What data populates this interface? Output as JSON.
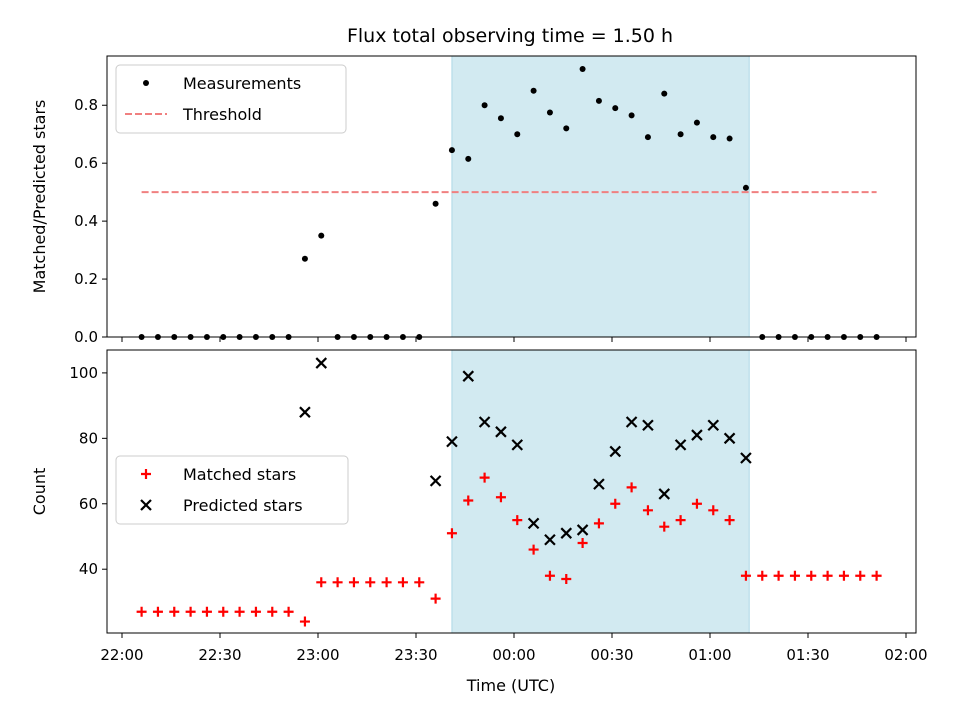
{
  "chart_data": [
    {
      "type": "scatter",
      "title": "Flux total observing time = 1.50 h",
      "xlabel": "",
      "ylabel": "Matched/Predicted stars",
      "ylim": [
        0,
        0.97
      ],
      "yticks": [
        "0.0",
        "0.2",
        "0.4",
        "0.6",
        "0.8"
      ],
      "shaded_region": [
        "23:41",
        "01:12"
      ],
      "shade_color": "#add8e6",
      "legend_position": "top-left",
      "series": [
        {
          "name": "Measurements",
          "marker": "dot",
          "color": "#000000",
          "x": [
            "22:06",
            "22:11",
            "22:16",
            "22:21",
            "22:26",
            "22:31",
            "22:36",
            "22:41",
            "22:46",
            "22:51",
            "22:56",
            "23:01",
            "23:06",
            "23:11",
            "23:16",
            "23:21",
            "23:26",
            "23:31",
            "23:36",
            "23:41",
            "23:46",
            "23:51",
            "23:56",
            "00:01",
            "00:06",
            "00:11",
            "00:16",
            "00:21",
            "00:26",
            "00:31",
            "00:36",
            "00:41",
            "00:46",
            "00:51",
            "00:56",
            "01:01",
            "01:06",
            "01:11",
            "01:16",
            "01:21",
            "01:26",
            "01:31",
            "01:36",
            "01:41",
            "01:46",
            "01:51"
          ],
          "y": [
            0,
            0,
            0,
            0,
            0,
            0,
            0,
            0,
            0,
            0,
            0.27,
            0.35,
            0,
            0,
            0,
            0,
            0,
            0,
            0.46,
            0.645,
            0.615,
            0.8,
            0.755,
            0.7,
            0.85,
            0.775,
            0.72,
            0.925,
            0.815,
            0.79,
            0.765,
            0.69,
            0.84,
            0.7,
            0.74,
            0.69,
            0.685,
            0.515,
            0,
            0,
            0,
            0,
            0,
            0,
            0,
            0
          ]
        },
        {
          "name": "Threshold",
          "style": "dashed",
          "color": "#f08080",
          "x": [
            "22:06",
            "01:51"
          ],
          "y": [
            0.5,
            0.5
          ]
        }
      ]
    },
    {
      "type": "scatter",
      "title": "",
      "xlabel": "Time (UTC)",
      "ylabel": "Count",
      "ylim": [
        20.5,
        107
      ],
      "yticks": [
        "40",
        "60",
        "80",
        "100"
      ],
      "xticks": [
        "22:00",
        "22:30",
        "23:00",
        "23:30",
        "00:00",
        "00:30",
        "01:00",
        "01:30",
        "02:00"
      ],
      "shaded_region": [
        "23:41",
        "01:12"
      ],
      "shade_color": "#add8e6",
      "legend_position": "center-left",
      "series": [
        {
          "name": "Matched stars",
          "marker": "plus",
          "color": "#ff0000",
          "x": [
            "22:06",
            "22:11",
            "22:16",
            "22:21",
            "22:26",
            "22:31",
            "22:36",
            "22:41",
            "22:46",
            "22:51",
            "22:56",
            "23:01",
            "23:06",
            "23:11",
            "23:16",
            "23:21",
            "23:26",
            "23:31",
            "23:36",
            "23:41",
            "23:46",
            "23:51",
            "23:56",
            "00:01",
            "00:06",
            "00:11",
            "00:16",
            "00:21",
            "00:26",
            "00:31",
            "00:36",
            "00:41",
            "00:46",
            "00:51",
            "00:56",
            "01:01",
            "01:06",
            "01:11",
            "01:16",
            "01:21",
            "01:26",
            "01:31",
            "01:36",
            "01:41",
            "01:46",
            "01:51"
          ],
          "y": [
            27,
            27,
            27,
            27,
            27,
            27,
            27,
            27,
            27,
            27,
            24,
            36,
            36,
            36,
            36,
            36,
            36,
            36,
            31,
            51,
            61,
            68,
            62,
            55,
            46,
            38,
            37,
            48,
            54,
            60,
            65,
            58,
            53,
            55,
            60,
            58,
            55,
            38,
            38,
            38,
            38,
            38,
            38,
            38,
            38,
            38
          ]
        },
        {
          "name": "Predicted stars",
          "marker": "x",
          "color": "#000000",
          "x": [
            "22:56",
            "23:01",
            "23:36",
            "23:41",
            "23:46",
            "23:51",
            "23:56",
            "00:01",
            "00:06",
            "00:11",
            "00:16",
            "00:21",
            "00:26",
            "00:31",
            "00:36",
            "00:41",
            "00:46",
            "00:51",
            "00:56",
            "01:01",
            "01:06",
            "01:11"
          ],
          "y": [
            88,
            103,
            67,
            79,
            99,
            85,
            82,
            78,
            54,
            49,
            51,
            52,
            66,
            76,
            85,
            84,
            63,
            78,
            81,
            84,
            80,
            74
          ]
        }
      ]
    }
  ]
}
